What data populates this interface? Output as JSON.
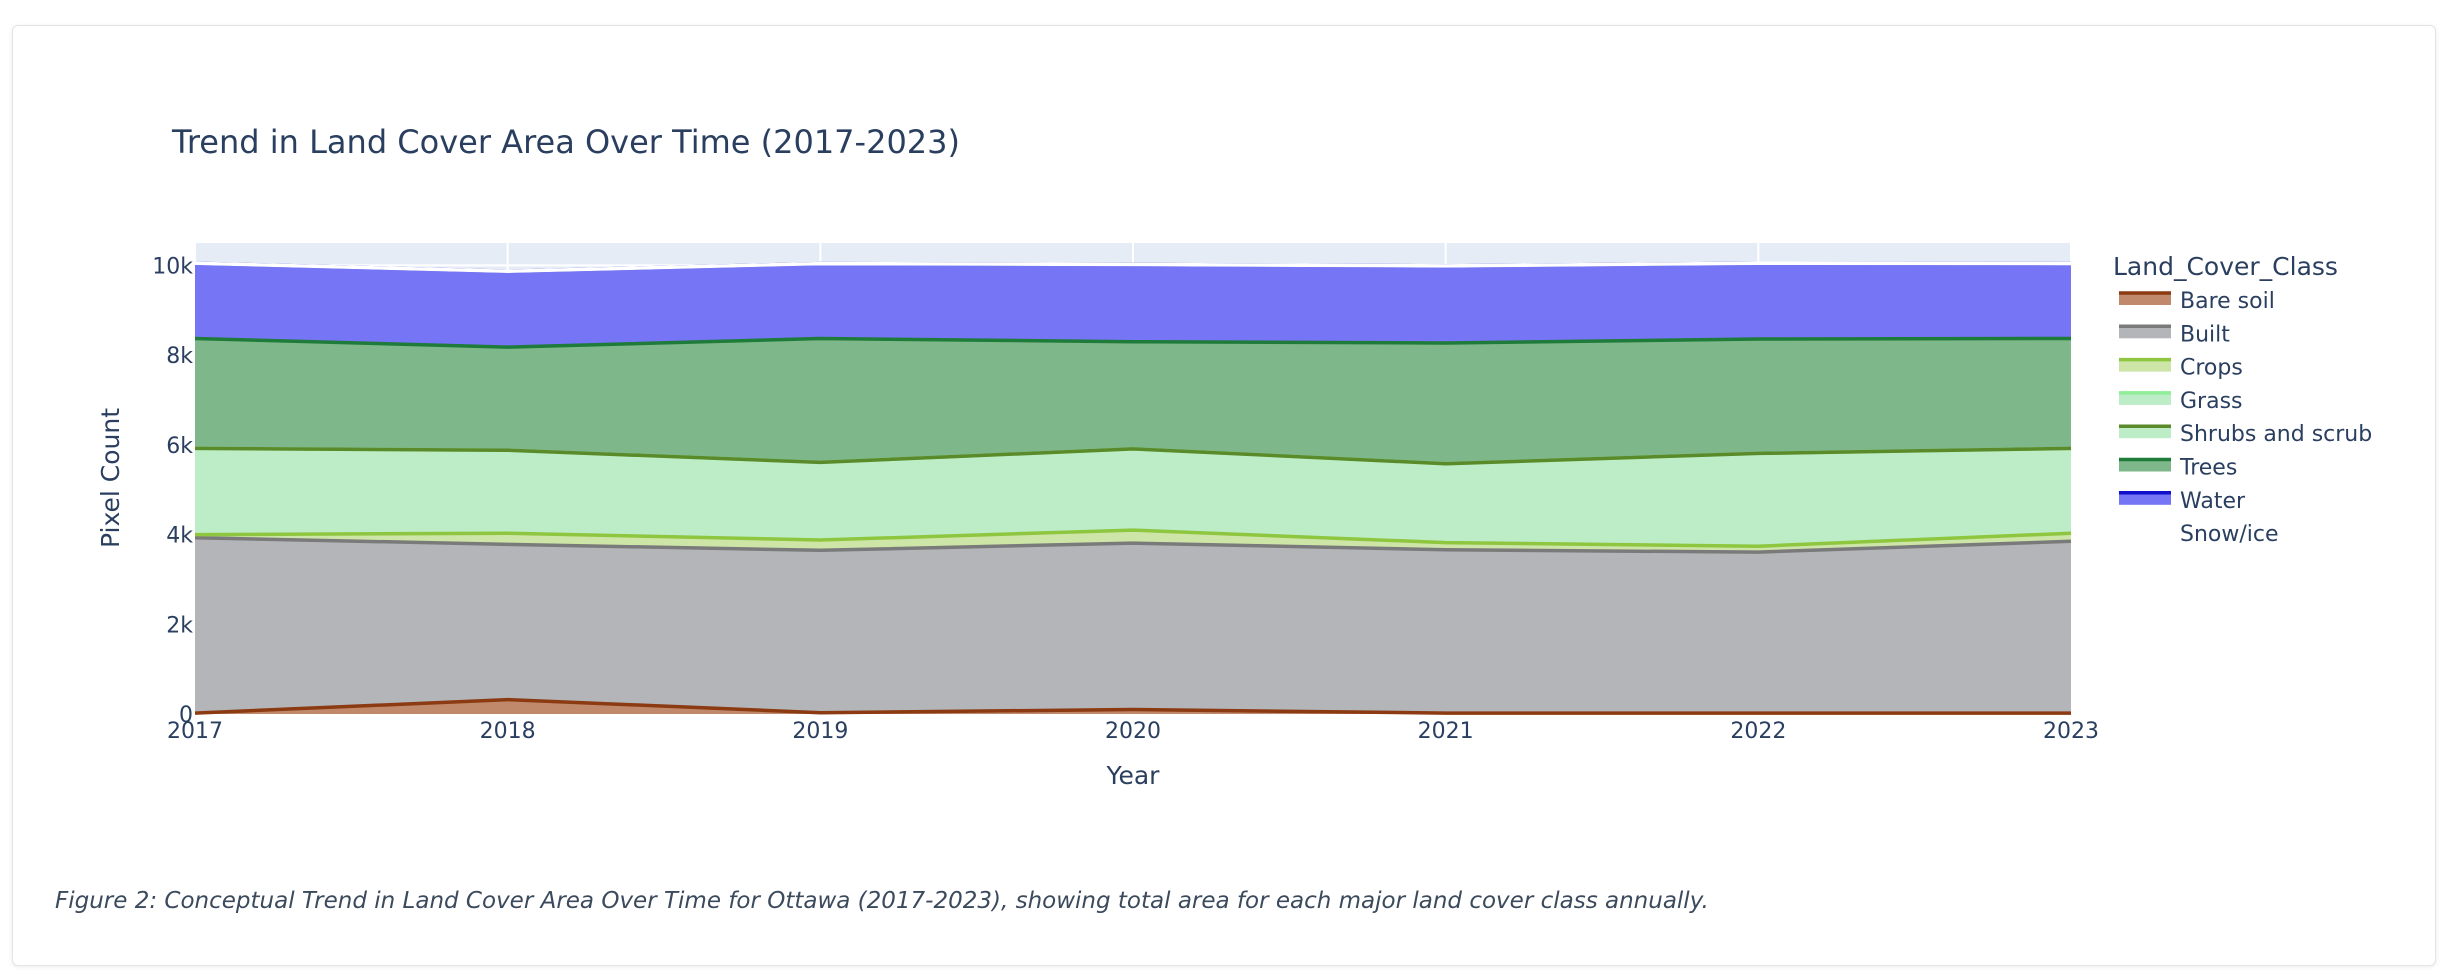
{
  "chart_data": {
    "type": "area",
    "title": "Trend in Land Cover Area Over Time (2017-2023)",
    "xlabel": "Year",
    "ylabel": "Pixel Count",
    "x": [
      2017,
      2018,
      2019,
      2020,
      2021,
      2022,
      2023
    ],
    "xtick_labels": [
      "2017",
      "2018",
      "2019",
      "2020",
      "2021",
      "2022",
      "2023"
    ],
    "ylim": [
      0,
      10500
    ],
    "yticks": [
      0,
      2000,
      4000,
      6000,
      8000,
      10000
    ],
    "ytick_labels": [
      "0",
      "2k",
      "4k",
      "6k",
      "8k",
      "10k"
    ],
    "stacked": true,
    "grid": true,
    "legend_title": "Land_Cover_Class",
    "legend_position": "right",
    "series": [
      {
        "name": "Bare soil",
        "line_color": "#8b3a12",
        "fill_color": "#c0896c",
        "values": [
          20,
          320,
          30,
          100,
          20,
          20,
          20
        ]
      },
      {
        "name": "Built",
        "line_color": "#7a7a7a",
        "fill_color": "#b3b5b9",
        "values": [
          3910,
          3460,
          3620,
          3710,
          3640,
          3590,
          3830
        ]
      },
      {
        "name": "Crops",
        "line_color": "#8ec63f",
        "fill_color": "#cde6a7",
        "values": [
          70,
          250,
          230,
          290,
          160,
          130,
          180
        ]
      },
      {
        "name": "Grass",
        "line_color": "#8fee96",
        "fill_color": "#bdedc6",
        "values": [
          1920,
          1850,
          1730,
          1810,
          1760,
          2070,
          1890
        ]
      },
      {
        "name": "Shrubs and scrub",
        "line_color": "#5a8a2a",
        "fill_color": "#bdedc6",
        "values": [
          0,
          0,
          0,
          0,
          0,
          0,
          0
        ]
      },
      {
        "name": "Trees",
        "line_color": "#1e7b3a",
        "fill_color": "#7eb789",
        "values": [
          2450,
          2300,
          2760,
          2390,
          2690,
          2550,
          2450
        ]
      },
      {
        "name": "Water",
        "line_color": "#1010cc",
        "fill_color": "#7575f5",
        "values": [
          1680,
          1690,
          1670,
          1720,
          1720,
          1690,
          1670
        ]
      },
      {
        "name": "Snow/ice",
        "line_color": "#ffffff",
        "fill_color": "#ffffff",
        "values": [
          0,
          0,
          0,
          0,
          0,
          0,
          0
        ]
      }
    ]
  },
  "caption": "Figure 2: Conceptual Trend in Land Cover Area Over Time for Ottawa (2017-2023), showing total area for each major land cover class annually."
}
